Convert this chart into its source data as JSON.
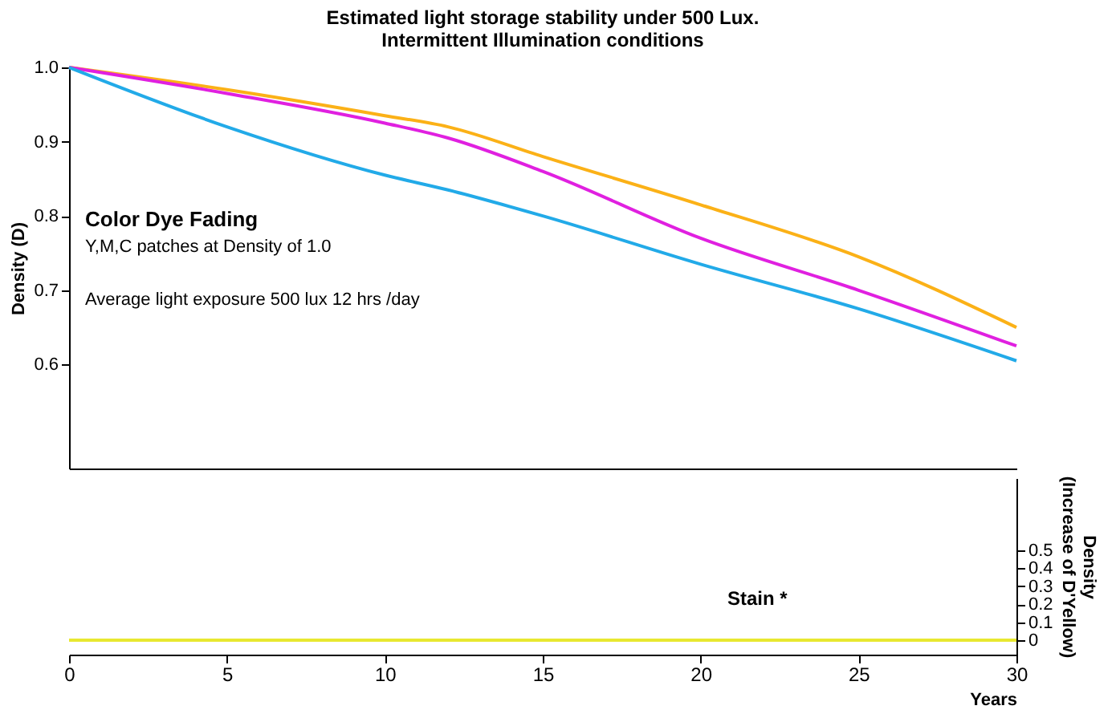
{
  "chart_data": [
    {
      "type": "line",
      "title": [
        "Estimated light storage stability under 500 Lux.",
        "Intermittent Illumination conditions"
      ],
      "ylabel": "Density (D)",
      "x": [
        0,
        5,
        10,
        12,
        15,
        20,
        25,
        30
      ],
      "series": [
        {
          "color": "#fbb117",
          "values": [
            1.0,
            0.97,
            0.935,
            0.92,
            0.88,
            0.815,
            0.745,
            0.65
          ]
        },
        {
          "color": "#e020e0",
          "values": [
            1.0,
            0.965,
            0.925,
            0.905,
            0.86,
            0.77,
            0.7,
            0.625
          ]
        },
        {
          "color": "#22aae8",
          "values": [
            1.0,
            0.92,
            0.855,
            0.835,
            0.8,
            0.735,
            0.675,
            0.605
          ]
        }
      ],
      "xlim": [
        0,
        30
      ],
      "ylim": [
        0.46,
        1.0
      ],
      "yticks": [
        0.6,
        0.7,
        0.8,
        0.9,
        {
          "value": 1.0,
          "label": "1.0"
        }
      ],
      "tick_labels": "y",
      "annotations": [
        "Color Dye Fading",
        "Y,M,C patches at Density of 1.0",
        "Average light exposure 500 lux 12 hrs /day"
      ]
    },
    {
      "type": "line",
      "xlabel": "Years",
      "y2label": [
        "Density",
        "(Increase of D'Yellow)"
      ],
      "x": [
        0,
        30
      ],
      "series": [
        {
          "color": "#e8e830",
          "values": [
            0,
            0
          ],
          "axis": "y2"
        }
      ],
      "xlim": [
        0,
        30
      ],
      "xticks": [
        0,
        5,
        10,
        15,
        20,
        25,
        30
      ],
      "y2lim": [
        -0.08,
        0.9
      ],
      "y2ticks": [
        0,
        0.1,
        0.2,
        0.3,
        0.4,
        0.5
      ],
      "annotations": [
        "Stain *"
      ]
    }
  ]
}
